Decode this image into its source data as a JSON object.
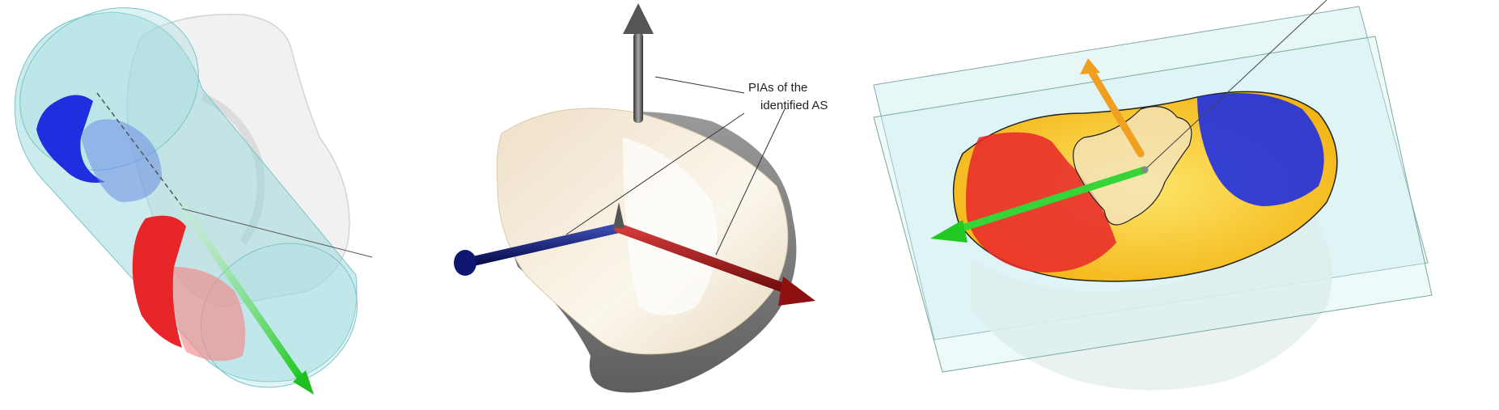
{
  "annotation": {
    "line1": "PIAs of the",
    "line2": "identified AS"
  },
  "colors": {
    "cylinder": "#8fd3d6",
    "blue_region": "#1f2fe0",
    "red_region": "#e8262a",
    "green_axis": "#2fd12f",
    "navy_axis": "#0e1670",
    "red_axis": "#a31414",
    "gray_axis": "#444444",
    "orange_axis": "#f0a020",
    "yellow_surface": "#f6c619",
    "bone_top": "#f2e6d3",
    "bone_under": "#7a7a7a",
    "plane": "#cfeff2"
  }
}
